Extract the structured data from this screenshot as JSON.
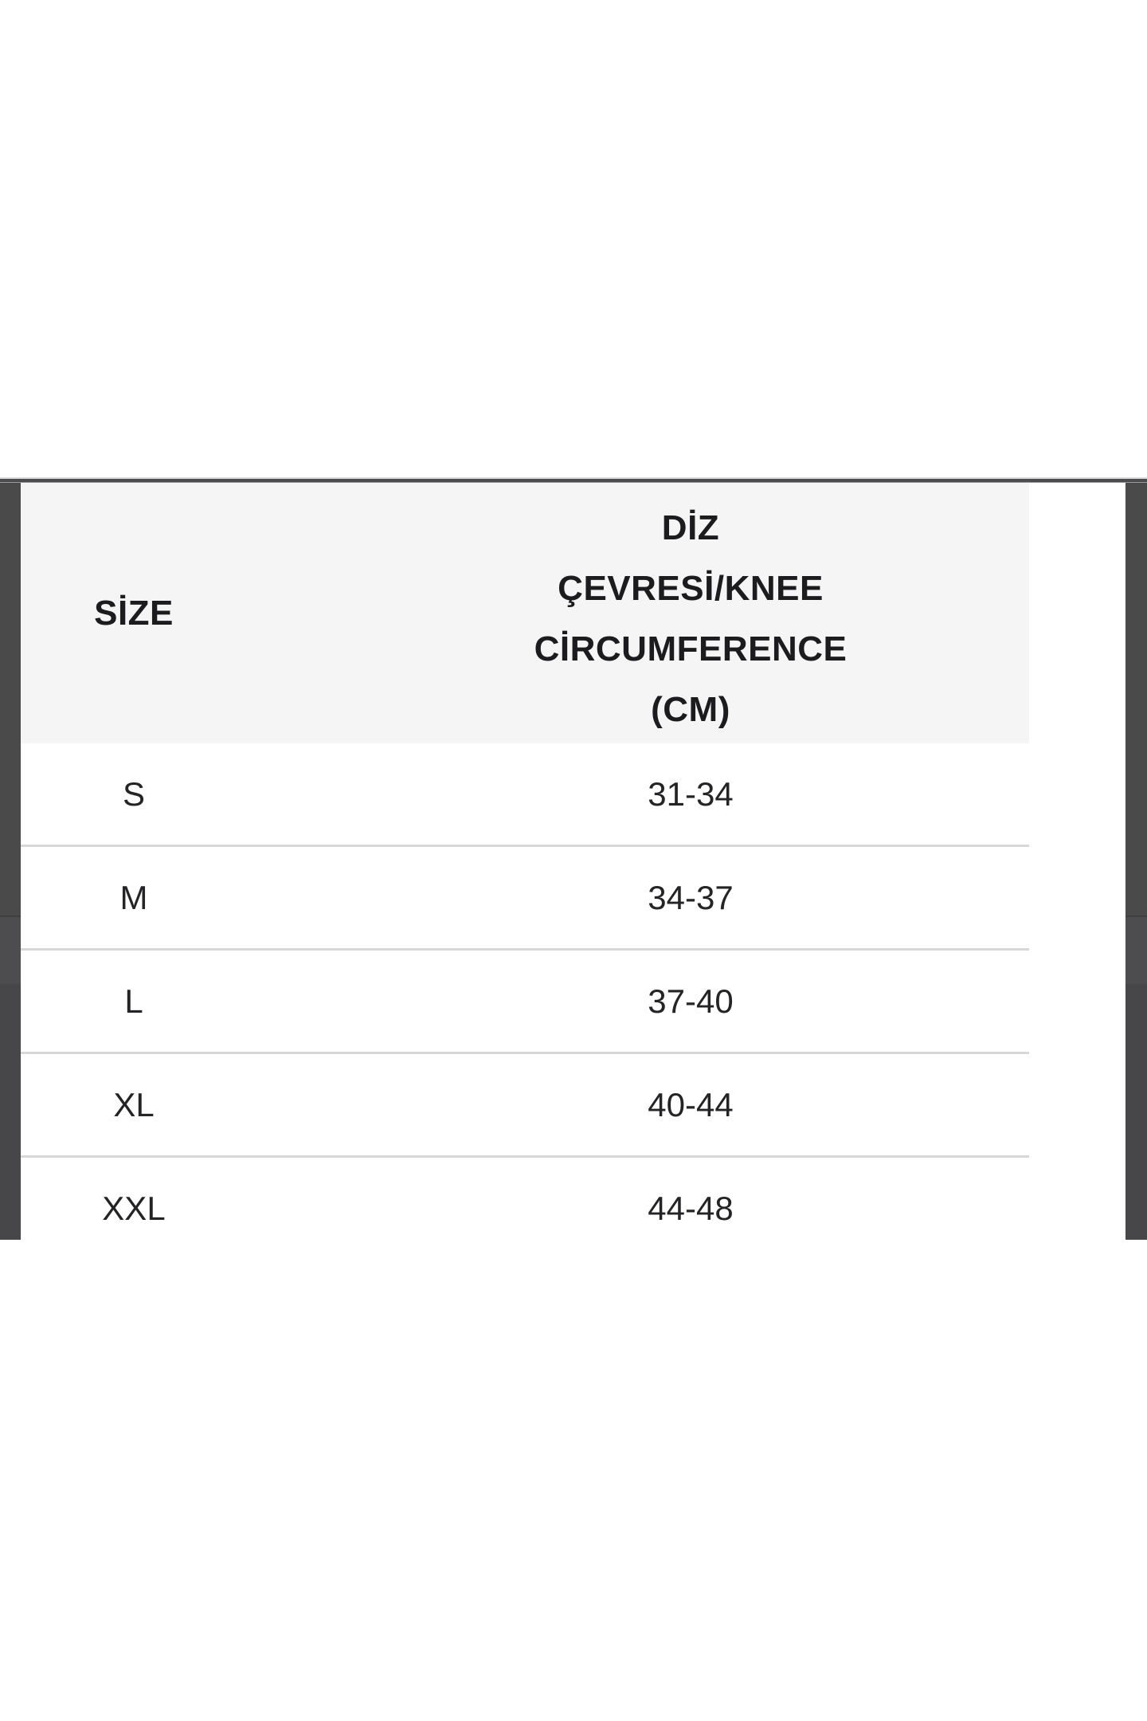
{
  "size_chart": {
    "header": {
      "size_label": "SİZE",
      "measure_lines": [
        "DİZ",
        "ÇEVRESİ/KNEE",
        "CİRCUMFERENCE",
        "(CM)"
      ]
    },
    "rows": [
      {
        "size": "S",
        "range": "31-34"
      },
      {
        "size": "M",
        "range": "34-37"
      },
      {
        "size": "L",
        "range": "37-40"
      },
      {
        "size": "XL",
        "range": "40-44"
      },
      {
        "size": "XXL",
        "range": "44-48"
      }
    ]
  },
  "colors": {
    "page_background": "#ffffff",
    "header_background": "#f5f5f6",
    "side_bars": "#4a4a4b",
    "top_rule_dark": "#4c4c4e",
    "row_divider": "#d7d7d7",
    "text_strong": "#1c1c1e",
    "text_body": "#242426"
  }
}
